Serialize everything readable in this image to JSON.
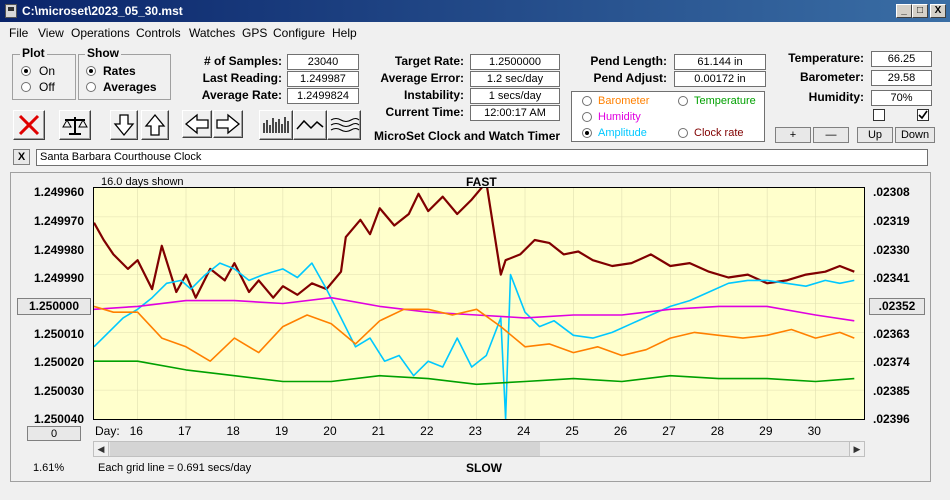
{
  "window": {
    "title": "C:\\microset\\2023_05_30.mst",
    "minimize_glyph": "_",
    "maximize_glyph": "□",
    "close_glyph": "X"
  },
  "menu": [
    "File",
    "View",
    "Operations",
    "Controls",
    "Watches",
    "GPS",
    "Configure",
    "Help"
  ],
  "plot_group": {
    "title": "Plot",
    "options": [
      "On",
      "Off"
    ],
    "selected": "On"
  },
  "show_group": {
    "title": "Show",
    "options": [
      "Rates",
      "Averages"
    ],
    "selected": "Rates"
  },
  "stats": {
    "samples_label": "# of Samples:",
    "samples": "23040",
    "last_reading_label": "Last Reading:",
    "last_reading": "1.249987",
    "average_rate_label": "Average Rate:",
    "average_rate": "1.2499824",
    "target_rate_label": "Target Rate:",
    "target_rate": "1.2500000",
    "average_error_label": "Average Error:",
    "average_error": "1.2 sec/day",
    "instability_label": "Instability:",
    "instability": "1 secs/day",
    "current_time_label": "Current Time:",
    "current_time": "12:00:17 AM",
    "pend_length_label": "Pend Length:",
    "pend_length": "61.144 in",
    "pend_adjust_label": "Pend Adjust:",
    "pend_adjust": "0.00172 in"
  },
  "env": {
    "temperature_label": "Temperature:",
    "temperature": "66.25",
    "barometer_label": "Barometer:",
    "barometer": "29.58",
    "humidity_label": "Humidity:",
    "humidity": "70%",
    "checkbox_left_checked": false,
    "checkbox_right_checked": true,
    "buttons": [
      "+",
      "—",
      "Up",
      "Down"
    ]
  },
  "app_caption": "MicroSet Clock and Watch Timer",
  "legend": {
    "selected": "Amplitude",
    "items": [
      {
        "label": "Barometer",
        "color": "#ff8000"
      },
      {
        "label": "Temperature",
        "color": "#00a000"
      },
      {
        "label": "Humidity",
        "color": "#e000e0"
      },
      {
        "label": "Amplitude",
        "color": "#00c8ff"
      },
      {
        "label": "Clock rate",
        "color": "#800000"
      }
    ]
  },
  "toolbar_icons": [
    "delete-icon",
    "balance-scale-icon",
    "arrow-down-icon",
    "arrow-up-icon",
    "arrow-left-icon",
    "arrow-right-icon",
    "bar-graph-icon",
    "wave-icon",
    "multi-wave-icon"
  ],
  "clock_name": "Santa Barbara Courthouse Clock",
  "clear_name_glyph": "X",
  "graph": {
    "days_shown": "16.0 days shown",
    "fast_label": "FAST",
    "slow_label": "SLOW",
    "day_label": "Day:",
    "percent": "1.61%",
    "grid_note": "Each grid line = 0.691 secs/day",
    "center_button": "1.250000",
    "right_center_button": ".02352",
    "zero_button": "0",
    "scroll_left_glyph": "◀",
    "scroll_right_glyph": "▶"
  },
  "chart_data": {
    "type": "line",
    "title": "",
    "x_label": "Day",
    "x_ticks": [
      "16",
      "17",
      "18",
      "19",
      "20",
      "21",
      "22",
      "23",
      "24",
      "25",
      "26",
      "27",
      "28",
      "29",
      "30"
    ],
    "xlim": [
      15.1,
      31.0
    ],
    "y_left_ticks": [
      "1.249960",
      "1.249970",
      "1.249980",
      "1.249990",
      "1.250000",
      "1.250010",
      "1.250020",
      "1.250030",
      "1.250040"
    ],
    "y_right_ticks": [
      ".02308",
      ".02319",
      ".02330",
      ".02341",
      ".02352",
      ".02363",
      ".02374",
      ".02385",
      ".02396"
    ],
    "ylim_left": [
      1.24996,
      1.25004
    ],
    "series": [
      {
        "name": "Clock rate",
        "color": "#800000",
        "x": [
          15.1,
          15.3,
          15.5,
          15.8,
          16.0,
          16.3,
          16.5,
          16.8,
          17.0,
          17.2,
          17.5,
          17.8,
          18.0,
          18.3,
          18.5,
          18.8,
          19.0,
          19.3,
          19.6,
          19.9,
          20.2,
          20.3,
          20.6,
          20.8,
          21.0,
          21.3,
          21.6,
          21.8,
          22.0,
          22.3,
          22.6,
          22.9,
          23.2,
          23.5,
          23.6,
          23.9,
          24.2,
          24.5,
          24.8,
          25.1,
          25.4,
          25.8,
          26.2,
          26.6,
          27.0,
          27.4,
          27.8,
          28.2,
          28.6,
          29.0,
          29.4,
          29.8,
          30.2,
          30.5,
          30.8
        ],
        "y": [
          1.249972,
          1.249978,
          1.249983,
          1.249988,
          1.249985,
          1.249995,
          1.24998,
          1.249996,
          1.24999,
          1.249998,
          1.249988,
          1.249992,
          1.249986,
          1.249996,
          1.249992,
          1.249998,
          1.249994,
          1.249997,
          1.249993,
          1.249995,
          1.249989,
          1.249977,
          1.249971,
          1.249976,
          1.249967,
          1.249973,
          1.249969,
          1.249962,
          1.249968,
          1.249963,
          1.249969,
          1.249964,
          1.249958,
          1.24999,
          1.249985,
          1.249983,
          1.249978,
          1.249979,
          1.249983,
          1.249982,
          1.249985,
          1.249987,
          1.249986,
          1.249983,
          1.249987,
          1.249986,
          1.249989,
          1.249991,
          1.24999,
          1.249993,
          1.249992,
          1.24999,
          1.249989,
          1.249987,
          1.249989
        ]
      },
      {
        "name": "Amplitude",
        "color": "#00c8ff",
        "x": [
          15.1,
          15.4,
          15.7,
          16.0,
          16.3,
          16.6,
          16.9,
          17.1,
          17.4,
          17.7,
          18.0,
          18.3,
          18.6,
          19.0,
          19.3,
          19.6,
          19.9,
          20.2,
          20.5,
          20.8,
          21.1,
          21.4,
          21.7,
          22.0,
          22.3,
          22.6,
          22.9,
          23.2,
          23.5,
          23.6,
          23.7,
          24.0,
          24.3,
          24.6,
          25.0,
          25.4,
          25.8,
          26.2,
          26.6,
          27.0,
          27.4,
          27.8,
          28.2,
          28.6,
          29.0,
          29.4,
          29.8,
          30.2,
          30.5,
          30.8
        ],
        "y": [
          1.250015,
          1.25001,
          1.250005,
          1.250002,
          1.249998,
          1.249993,
          1.249992,
          1.249995,
          1.24999,
          1.249986,
          1.249988,
          1.249992,
          1.24999,
          1.249988,
          1.249991,
          1.249986,
          1.249995,
          1.250005,
          1.250015,
          1.250012,
          1.25002,
          1.250018,
          1.250025,
          1.25002,
          1.250022,
          1.250012,
          1.250022,
          1.250018,
          1.250005,
          1.25004,
          1.24999,
          1.250003,
          1.250008,
          1.250006,
          1.250011,
          1.250012,
          1.25001,
          1.250007,
          1.250004,
          1.250001,
          1.249999,
          1.249996,
          1.249993,
          1.249992,
          1.249992,
          1.249993,
          1.249994,
          1.249992,
          1.249993,
          1.249992
        ]
      },
      {
        "name": "Humidity",
        "color": "#e000e0",
        "x": [
          15.1,
          16.0,
          17.0,
          18.0,
          19.0,
          20.0,
          21.0,
          22.0,
          23.0,
          24.0,
          25.0,
          26.0,
          27.0,
          28.0,
          29.0,
          30.0,
          30.8
        ],
        "y": [
          1.250002,
          1.250001,
          1.249999,
          1.249999,
          1.25,
          1.249998,
          1.250001,
          1.250003,
          1.250004,
          1.250005,
          1.250004,
          1.250004,
          1.250002,
          1.250001,
          1.250001,
          1.250004,
          1.250006
        ]
      },
      {
        "name": "Barometer",
        "color": "#ff8000",
        "x": [
          15.1,
          15.5,
          16.0,
          16.5,
          17.0,
          17.5,
          18.0,
          18.5,
          19.0,
          19.5,
          20.0,
          20.5,
          21.0,
          21.5,
          22.0,
          22.5,
          23.0,
          23.5,
          24.0,
          24.5,
          25.0,
          25.5,
          26.0,
          26.5,
          27.0,
          27.5,
          28.0,
          28.5,
          29.0,
          29.5,
          30.0,
          30.5,
          30.8
        ],
        "y": [
          1.250001,
          1.250003,
          1.250003,
          1.250012,
          1.250015,
          1.25002,
          1.250012,
          1.250017,
          1.250008,
          1.250004,
          1.250007,
          1.250014,
          1.250006,
          1.250002,
          1.250002,
          1.250004,
          1.250002,
          1.250008,
          1.250015,
          1.250014,
          1.250017,
          1.250015,
          1.250018,
          1.250016,
          1.250012,
          1.25001,
          1.250011,
          1.250012,
          1.250011,
          1.250009,
          1.250012,
          1.25001,
          1.250012
        ]
      },
      {
        "name": "Temperature",
        "color": "#00a000",
        "x": [
          15.1,
          16.0,
          17.0,
          18.0,
          19.0,
          20.0,
          21.0,
          22.0,
          23.0,
          24.0,
          25.0,
          26.0,
          27.0,
          28.0,
          29.0,
          30.0,
          30.8
        ],
        "y": [
          1.25002,
          1.25002,
          1.250023,
          1.250025,
          1.250027,
          1.250027,
          1.250025,
          1.250026,
          1.250028,
          1.250027,
          1.250026,
          1.250027,
          1.250025,
          1.250026,
          1.250026,
          1.250027,
          1.250026
        ]
      }
    ]
  }
}
